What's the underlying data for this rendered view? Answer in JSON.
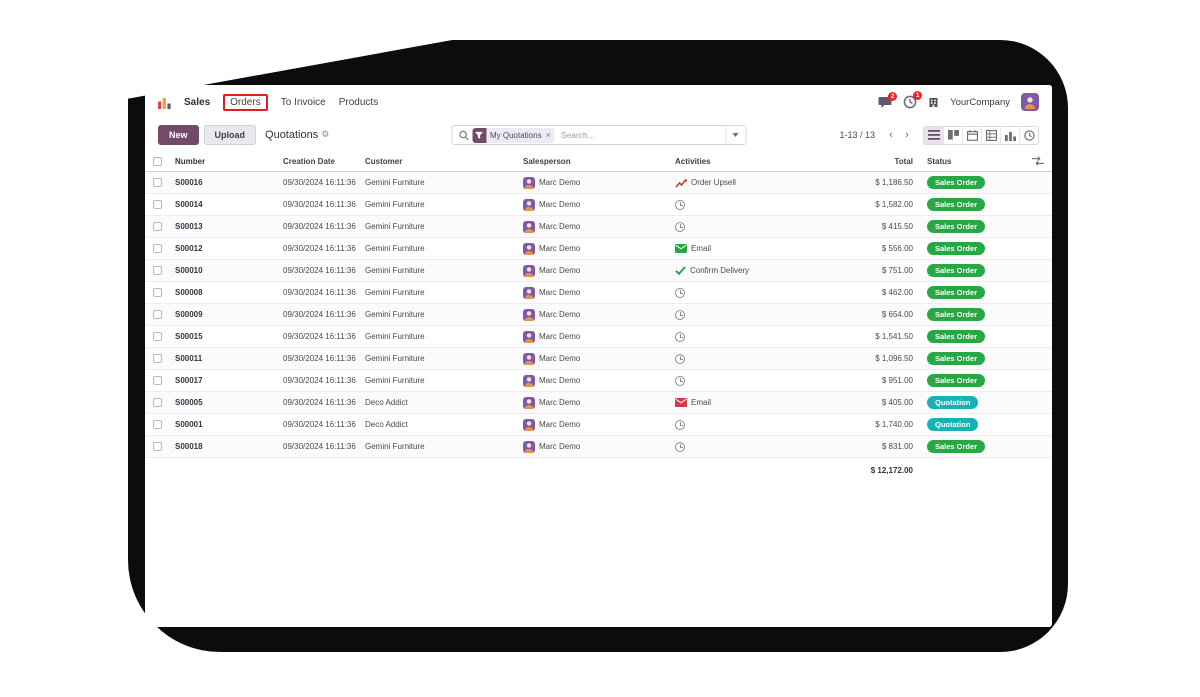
{
  "colors": {
    "accent": "#714B67",
    "green": "#28a745",
    "teal": "#17b3b3",
    "annotation": "#e02020",
    "avatar": "#7d5ba6"
  },
  "icons": {
    "gear": "⚙",
    "close": "×",
    "prev": "‹",
    "next": "›"
  },
  "topbar": {
    "app_menu": [
      {
        "label": "Sales"
      },
      {
        "label": "Orders"
      },
      {
        "label": "To Invoice"
      },
      {
        "label": "Products"
      }
    ],
    "message_badge": "2",
    "activity_badge": "1",
    "company": "YourCompany"
  },
  "control_bar": {
    "new_label": "New",
    "upload_label": "Upload",
    "title": "Quotations",
    "search": {
      "facet": "My Quotations",
      "placeholder": "Search..."
    },
    "pager": "1-13 / 13"
  },
  "table": {
    "headers": [
      "Number",
      "Creation Date",
      "Customer",
      "Salesperson",
      "Activities",
      "Total",
      "Status"
    ],
    "rows": [
      {
        "number": "S00016",
        "creation_date": "09/30/2024 16:11:36",
        "customer": "Gemini Furniture",
        "salesperson": "Marc Demo",
        "activity": {
          "icon": "upsell",
          "label": "Order Upsell"
        },
        "total": "$ 1,186.50",
        "status": "Sales Order",
        "status_type": "sales_order"
      },
      {
        "number": "S00014",
        "creation_date": "09/30/2024 16:11:36",
        "customer": "Gemini Furniture",
        "salesperson": "Marc Demo",
        "activity": {
          "icon": "clock",
          "label": ""
        },
        "total": "$ 1,582.00",
        "status": "Sales Order",
        "status_type": "sales_order"
      },
      {
        "number": "S00013",
        "creation_date": "09/30/2024 16:11:36",
        "customer": "Gemini Furniture",
        "salesperson": "Marc Demo",
        "activity": {
          "icon": "clock",
          "label": ""
        },
        "total": "$ 415.50",
        "status": "Sales Order",
        "status_type": "sales_order"
      },
      {
        "number": "S00012",
        "creation_date": "09/30/2024 16:11:36",
        "customer": "Gemini Furniture",
        "salesperson": "Marc Demo",
        "activity": {
          "icon": "email-green",
          "label": "Email"
        },
        "total": "$ 556.00",
        "status": "Sales Order",
        "status_type": "sales_order"
      },
      {
        "number": "S00010",
        "creation_date": "09/30/2024 16:11:36",
        "customer": "Gemini Furniture",
        "salesperson": "Marc Demo",
        "activity": {
          "icon": "check",
          "label": "Confirm Delivery"
        },
        "total": "$ 751.00",
        "status": "Sales Order",
        "status_type": "sales_order"
      },
      {
        "number": "S00008",
        "creation_date": "09/30/2024 16:11:36",
        "customer": "Gemini Furniture",
        "salesperson": "Marc Demo",
        "activity": {
          "icon": "clock",
          "label": ""
        },
        "total": "$ 462.00",
        "status": "Sales Order",
        "status_type": "sales_order"
      },
      {
        "number": "S00009",
        "creation_date": "09/30/2024 16:11:36",
        "customer": "Gemini Furniture",
        "salesperson": "Marc Demo",
        "activity": {
          "icon": "clock",
          "label": ""
        },
        "total": "$ 654.00",
        "status": "Sales Order",
        "status_type": "sales_order"
      },
      {
        "number": "S00015",
        "creation_date": "09/30/2024 16:11:36",
        "customer": "Gemini Furniture",
        "salesperson": "Marc Demo",
        "activity": {
          "icon": "clock",
          "label": ""
        },
        "total": "$ 1,541.50",
        "status": "Sales Order",
        "status_type": "sales_order"
      },
      {
        "number": "S00011",
        "creation_date": "09/30/2024 16:11:36",
        "customer": "Gemini Furniture",
        "salesperson": "Marc Demo",
        "activity": {
          "icon": "clock",
          "label": ""
        },
        "total": "$ 1,096.50",
        "status": "Sales Order",
        "status_type": "sales_order"
      },
      {
        "number": "S00017",
        "creation_date": "09/30/2024 16:11:36",
        "customer": "Gemini Furniture",
        "salesperson": "Marc Demo",
        "activity": {
          "icon": "clock",
          "label": ""
        },
        "total": "$ 951.00",
        "status": "Sales Order",
        "status_type": "sales_order"
      },
      {
        "number": "S00005",
        "creation_date": "09/30/2024 16:11:36",
        "customer": "Deco Addict",
        "salesperson": "Marc Demo",
        "activity": {
          "icon": "email-red",
          "label": "Email"
        },
        "total": "$ 405.00",
        "status": "Quotation",
        "status_type": "quotation"
      },
      {
        "number": "S00001",
        "creation_date": "09/30/2024 16:11:36",
        "customer": "Deco Addict",
        "salesperson": "Marc Demo",
        "activity": {
          "icon": "clock",
          "label": ""
        },
        "total": "$ 1,740.00",
        "status": "Quotation",
        "status_type": "quotation"
      },
      {
        "number": "S00018",
        "creation_date": "09/30/2024 16:11:36",
        "customer": "Gemini Furniture",
        "salesperson": "Marc Demo",
        "activity": {
          "icon": "clock",
          "label": ""
        },
        "total": "$ 831.00",
        "status": "Sales Order",
        "status_type": "sales_order"
      }
    ],
    "footer_total": "$ 12,172.00"
  }
}
